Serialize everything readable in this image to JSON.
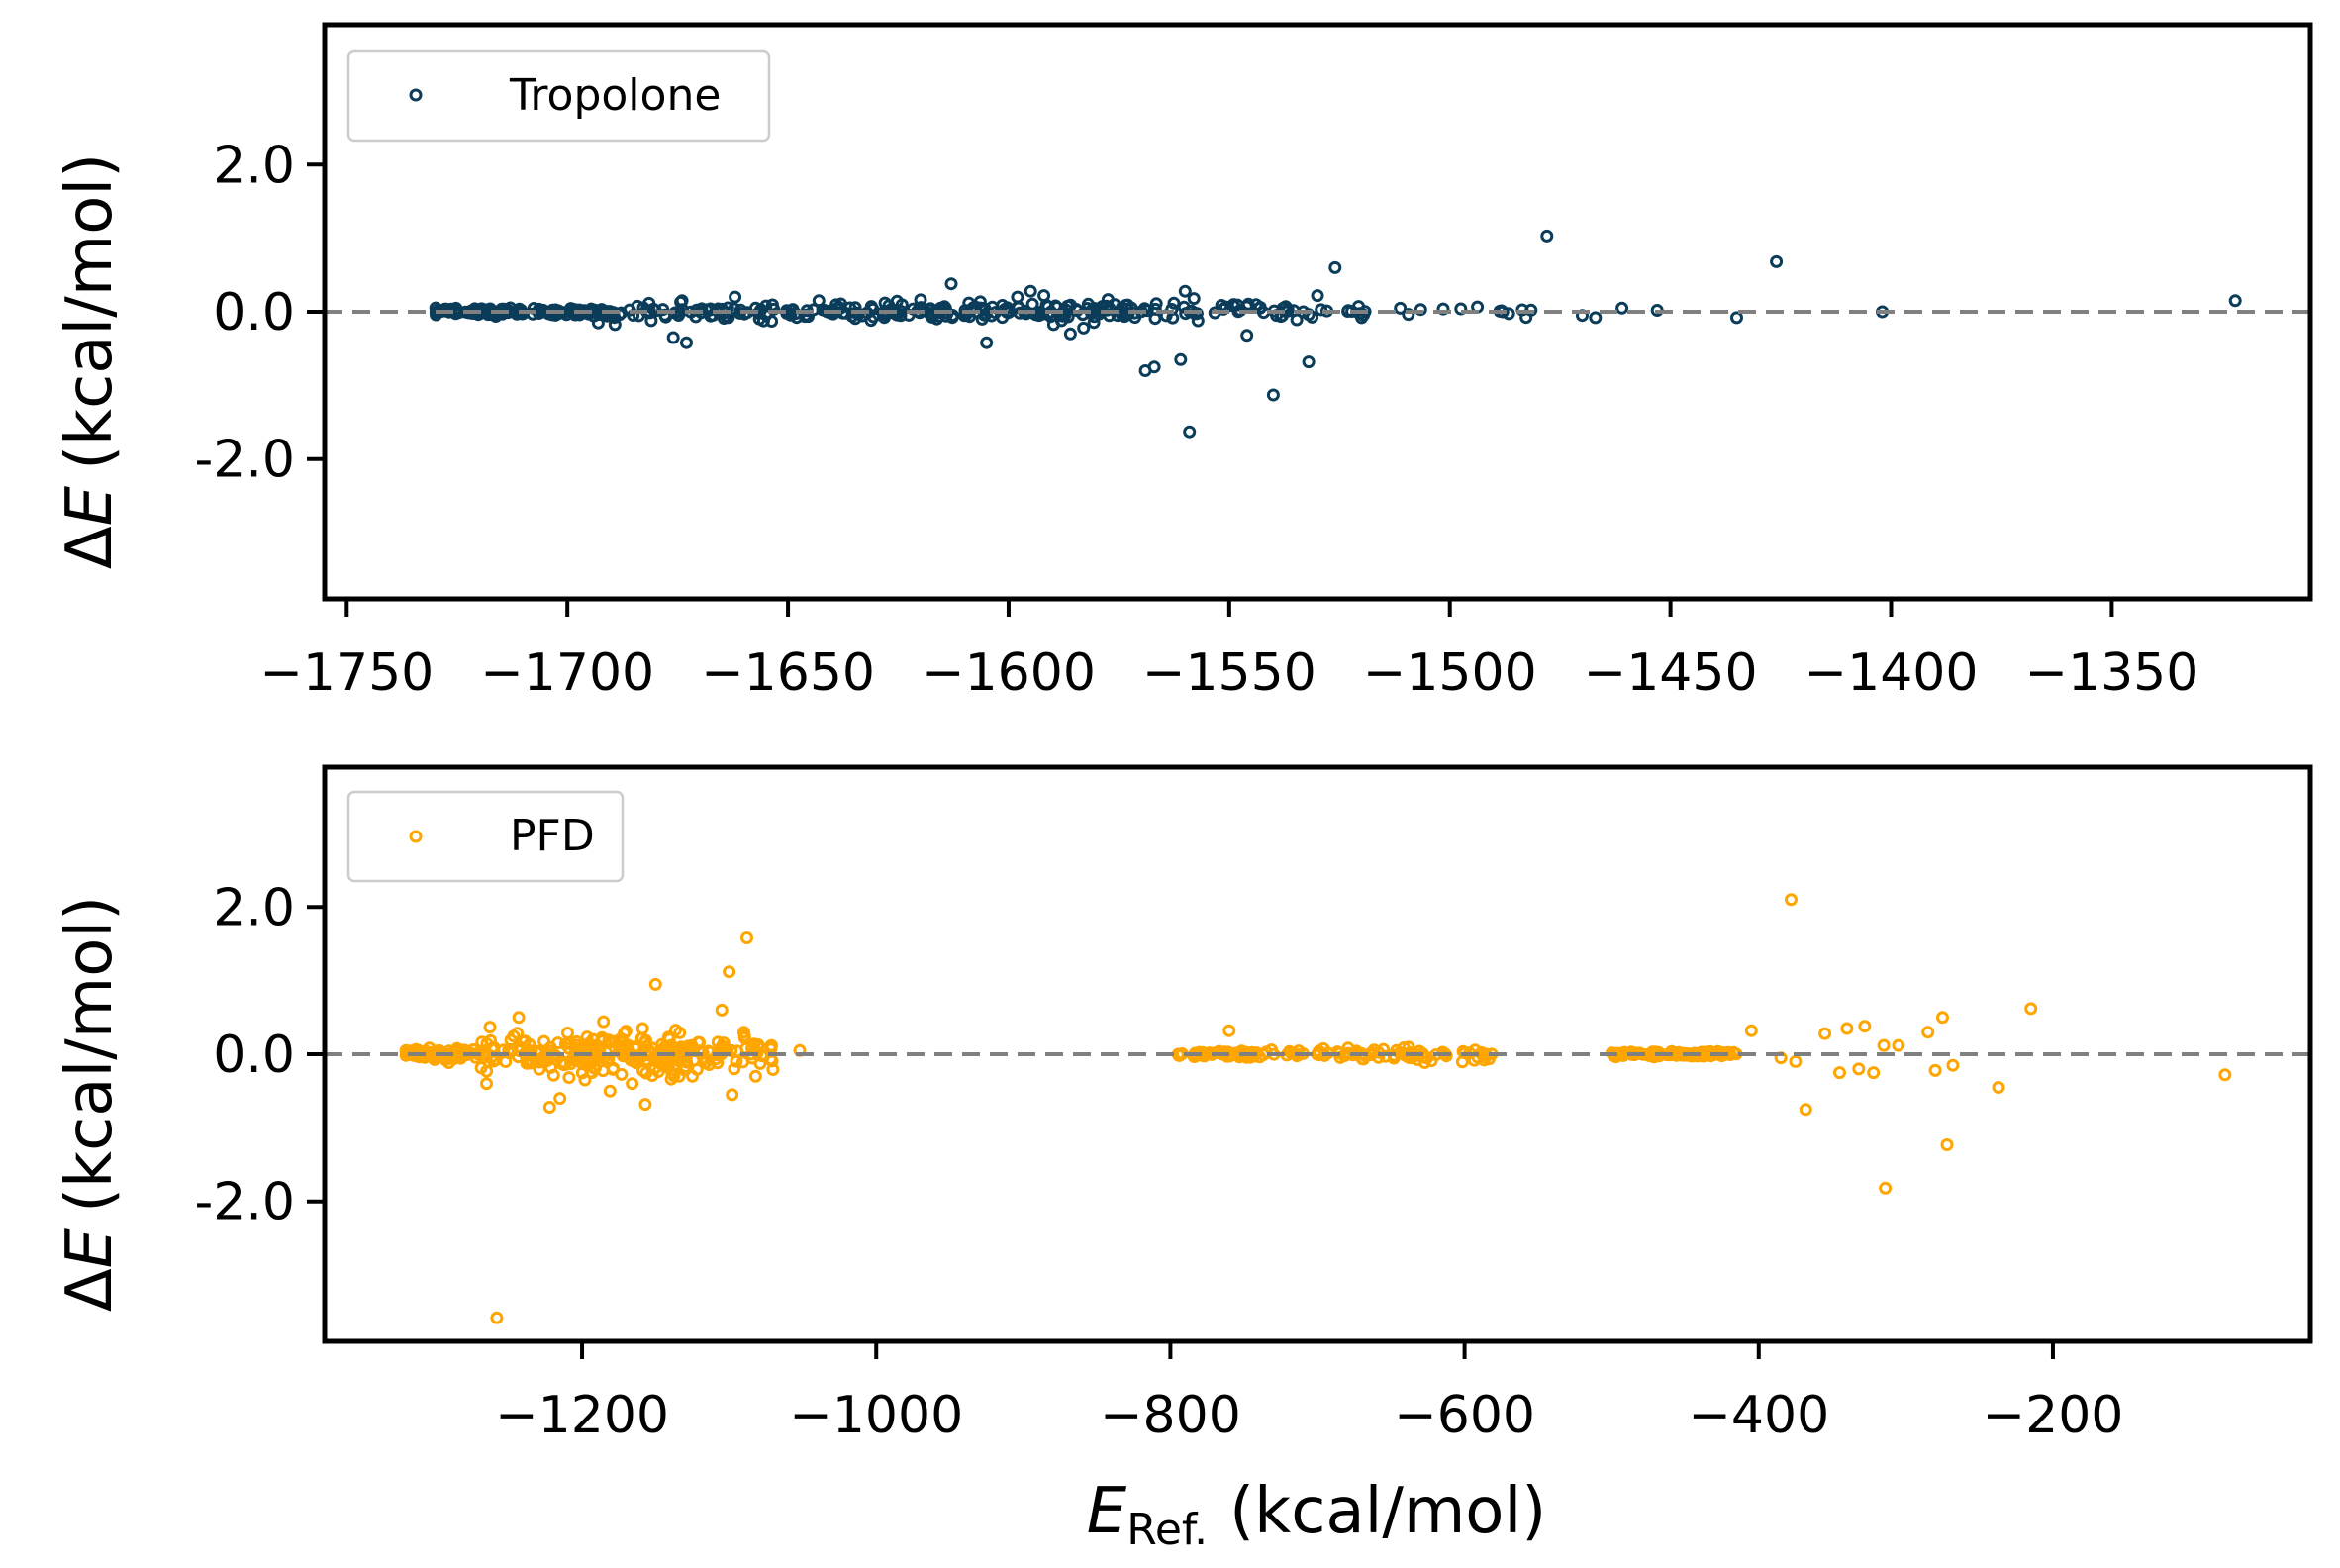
{
  "figure": {
    "xlabel_main": "E",
    "xlabel_sub": "Ref.",
    "xlabel_units": "(kcal/mol)",
    "ylabel_delta": "Δ",
    "ylabel_var": "E",
    "ylabel_units": "(kcal/mol)"
  },
  "chart_data": [
    {
      "type": "scatter",
      "legend": "Tropolone",
      "color": "#0b3d5a",
      "xlim": [
        -1755,
        -1305
      ],
      "ylim": [
        -3.9,
        3.9
      ],
      "xticks": [
        -1750,
        -1700,
        -1650,
        -1600,
        -1550,
        -1500,
        -1450,
        -1400,
        -1350
      ],
      "xtick_labels": [
        "−1750",
        "−1700",
        "−1650",
        "−1600",
        "−1550",
        "−1500",
        "−1450",
        "−1400",
        "−1350"
      ],
      "yticks": [
        2.0,
        0.0,
        -2.0
      ],
      "ytick_labels": [
        "2.0",
        "0.0",
        "-2.0"
      ],
      "xlabel": "",
      "ylabel": "ΔE (kcal/mol)",
      "reference_line": 0.0,
      "legend_position": "top-left",
      "outliers": [
        {
          "x": -1693,
          "y": -0.15
        },
        {
          "x": -1681,
          "y": -0.12
        },
        {
          "x": -1676,
          "y": -0.35
        },
        {
          "x": -1673,
          "y": -0.42
        },
        {
          "x": -1674,
          "y": 0.15
        },
        {
          "x": -1662,
          "y": 0.2
        },
        {
          "x": -1655,
          "y": 0.08
        },
        {
          "x": -1643,
          "y": 0.15
        },
        {
          "x": -1628,
          "y": 0.12
        },
        {
          "x": -1613,
          "y": 0.38
        },
        {
          "x": -1609,
          "y": 0.12
        },
        {
          "x": -1606,
          "y": -0.1
        },
        {
          "x": -1605,
          "y": -0.42
        },
        {
          "x": -1598,
          "y": 0.2
        },
        {
          "x": -1595,
          "y": 0.28
        },
        {
          "x": -1592,
          "y": 0.22
        },
        {
          "x": -1588,
          "y": -0.12
        },
        {
          "x": -1586,
          "y": -0.3
        },
        {
          "x": -1583,
          "y": -0.22
        },
        {
          "x": -1576,
          "y": 0.1
        },
        {
          "x": -1569,
          "y": -0.8
        },
        {
          "x": -1567,
          "y": -0.75
        },
        {
          "x": -1561,
          "y": -0.65
        },
        {
          "x": -1560,
          "y": 0.28
        },
        {
          "x": -1558,
          "y": 0.18
        },
        {
          "x": -1559,
          "y": -1.63
        },
        {
          "x": -1549,
          "y": 0.1
        },
        {
          "x": -1546,
          "y": -0.32
        },
        {
          "x": -1543,
          "y": 0.05
        },
        {
          "x": -1540,
          "y": -1.13
        },
        {
          "x": -1532,
          "y": -0.68
        },
        {
          "x": -1530,
          "y": 0.22
        },
        {
          "x": -1526,
          "y": 0.6
        },
        {
          "x": -1520,
          "y": -0.08
        },
        {
          "x": -1478,
          "y": 1.03
        },
        {
          "x": -1470,
          "y": -0.05
        },
        {
          "x": -1467,
          "y": -0.08
        },
        {
          "x": -1461,
          "y": 0.05
        },
        {
          "x": -1453,
          "y": 0.02
        },
        {
          "x": -1435,
          "y": -0.08
        },
        {
          "x": -1426,
          "y": 0.68
        },
        {
          "x": -1402,
          "y": 0.0
        },
        {
          "x": -1322,
          "y": 0.15
        }
      ],
      "note": "Dense cluster of points near 0.0 between -1730 and -1480 generated procedurally"
    },
    {
      "type": "scatter",
      "legend": "PFD",
      "color": "#ffa500",
      "xlim": [
        -1375,
        -25
      ],
      "ylim": [
        -3.9,
        3.9
      ],
      "xticks": [
        -1200,
        -1000,
        -800,
        -600,
        -400,
        -200
      ],
      "xtick_labels": [
        "−1200",
        "−1000",
        "−800",
        "−600",
        "−400",
        "−200"
      ],
      "yticks": [
        2.0,
        0.0,
        -2.0
      ],
      "ytick_labels": [
        "2.0",
        "0.0",
        "-2.0"
      ],
      "xlabel": "E_Ref. (kcal/mol)",
      "ylabel": "ΔE (kcal/mol)",
      "reference_line": 0.0,
      "legend_position": "top-left",
      "outliers": [
        {
          "x": -1258,
          "y": -3.58
        },
        {
          "x": -1265,
          "y": -0.4
        },
        {
          "x": -1243,
          "y": 0.5
        },
        {
          "x": -1222,
          "y": -0.72
        },
        {
          "x": -1215,
          "y": -0.6
        },
        {
          "x": -1198,
          "y": -0.35
        },
        {
          "x": -1181,
          "y": -0.5
        },
        {
          "x": -1166,
          "y": -0.4
        },
        {
          "x": -1157,
          "y": -0.68
        },
        {
          "x": -1150,
          "y": 0.95
        },
        {
          "x": -1134,
          "y": -0.3
        },
        {
          "x": -1125,
          "y": -0.3
        },
        {
          "x": -1105,
          "y": 0.6
        },
        {
          "x": -1100,
          "y": 1.12
        },
        {
          "x": -1098,
          "y": -0.55
        },
        {
          "x": -1090,
          "y": 0.3
        },
        {
          "x": -1088,
          "y": 1.58
        },
        {
          "x": -1082,
          "y": -0.3
        },
        {
          "x": -1052,
          "y": 0.05
        },
        {
          "x": -760,
          "y": 0.32
        },
        {
          "x": -378,
          "y": 2.1
        },
        {
          "x": -405,
          "y": 0.32
        },
        {
          "x": -385,
          "y": -0.05
        },
        {
          "x": -375,
          "y": -0.1
        },
        {
          "x": -368,
          "y": -0.75
        },
        {
          "x": -355,
          "y": 0.28
        },
        {
          "x": -345,
          "y": -0.25
        },
        {
          "x": -340,
          "y": 0.35
        },
        {
          "x": -332,
          "y": -0.2
        },
        {
          "x": -328,
          "y": 0.38
        },
        {
          "x": -322,
          "y": -0.25
        },
        {
          "x": -315,
          "y": 0.12
        },
        {
          "x": -314,
          "y": -1.82
        },
        {
          "x": -305,
          "y": 0.12
        },
        {
          "x": -285,
          "y": 0.3
        },
        {
          "x": -280,
          "y": -0.22
        },
        {
          "x": -275,
          "y": 0.5
        },
        {
          "x": -272,
          "y": -1.23
        },
        {
          "x": -268,
          "y": -0.15
        },
        {
          "x": -237,
          "y": -0.45
        },
        {
          "x": -215,
          "y": 0.62
        },
        {
          "x": -83,
          "y": -0.28
        }
      ],
      "note": "Dense clusters near 0.0 at -1320..-1060, -800..-580, -500..-415 generated procedurally"
    }
  ]
}
